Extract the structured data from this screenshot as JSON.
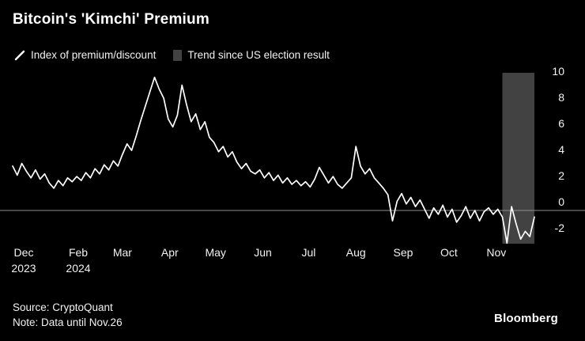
{
  "header": {
    "title": "Bitcoin's 'Kimchi' Premium"
  },
  "legend": [
    {
      "label": "Index of premium/discount",
      "marker": "white-line"
    },
    {
      "label": "Trend since US election result",
      "marker": "gray-box"
    }
  ],
  "footer": {
    "source": "Source: CryptoQuant",
    "note": "Note: Data until Nov.26",
    "brand": "Bloomberg"
  },
  "colors": {
    "background": "#000000",
    "line": "#ffffff",
    "band": "#424242",
    "axis": "#8f8f8f",
    "text": "#f2f2f2"
  },
  "chart_data": {
    "type": "line",
    "title": "Bitcoin's 'Kimchi' Premium",
    "ylabel": "",
    "xlabel": "",
    "y_ticks": [
      10,
      8,
      6,
      4,
      2,
      0,
      -2
    ],
    "ylim": [
      -2.8,
      10.8
    ],
    "x_domain_days": 342,
    "x_ticks": [
      {
        "label": "Dec",
        "year": "2023",
        "day": 6
      },
      {
        "label": "Feb",
        "year": "2024",
        "day": 43
      },
      {
        "label": "Mar",
        "day": 72
      },
      {
        "label": "Apr",
        "day": 103
      },
      {
        "label": "May",
        "day": 133
      },
      {
        "label": "Jun",
        "day": 164
      },
      {
        "label": "Jul",
        "day": 194
      },
      {
        "label": "Aug",
        "day": 225
      },
      {
        "label": "Sep",
        "day": 256
      },
      {
        "label": "Oct",
        "day": 286
      },
      {
        "label": "Nov",
        "day": 317
      }
    ],
    "zero_line": 0,
    "legend_position": "top",
    "grid": false,
    "highlight_band": {
      "name": "Trend since US election result",
      "start_day": 321,
      "end_day": 342
    },
    "series": [
      {
        "name": "Index of premium/discount",
        "points": [
          [
            0,
            3.4
          ],
          [
            3,
            2.7
          ],
          [
            6,
            3.6
          ],
          [
            9,
            3.0
          ],
          [
            12,
            2.5
          ],
          [
            15,
            3.1
          ],
          [
            18,
            2.4
          ],
          [
            21,
            2.8
          ],
          [
            24,
            2.1
          ],
          [
            27,
            1.7
          ],
          [
            30,
            2.3
          ],
          [
            33,
            1.9
          ],
          [
            36,
            2.5
          ],
          [
            39,
            2.2
          ],
          [
            42,
            2.6
          ],
          [
            45,
            2.3
          ],
          [
            48,
            2.9
          ],
          [
            51,
            2.5
          ],
          [
            54,
            3.2
          ],
          [
            57,
            2.8
          ],
          [
            60,
            3.5
          ],
          [
            63,
            3.1
          ],
          [
            66,
            3.8
          ],
          [
            69,
            3.4
          ],
          [
            72,
            4.3
          ],
          [
            75,
            5.1
          ],
          [
            78,
            4.6
          ],
          [
            81,
            5.7
          ],
          [
            84,
            6.9
          ],
          [
            87,
            8.0
          ],
          [
            90,
            9.1
          ],
          [
            93,
            10.2
          ],
          [
            96,
            9.3
          ],
          [
            99,
            8.6
          ],
          [
            102,
            7.0
          ],
          [
            105,
            6.4
          ],
          [
            108,
            7.3
          ],
          [
            111,
            9.6
          ],
          [
            114,
            8.1
          ],
          [
            117,
            6.8
          ],
          [
            120,
            7.4
          ],
          [
            123,
            6.2
          ],
          [
            126,
            6.8
          ],
          [
            129,
            5.6
          ],
          [
            132,
            5.2
          ],
          [
            135,
            4.5
          ],
          [
            138,
            4.9
          ],
          [
            141,
            4.1
          ],
          [
            144,
            4.5
          ],
          [
            147,
            3.7
          ],
          [
            150,
            3.2
          ],
          [
            153,
            3.6
          ],
          [
            156,
            3.0
          ],
          [
            159,
            2.8
          ],
          [
            162,
            3.1
          ],
          [
            165,
            2.5
          ],
          [
            168,
            2.9
          ],
          [
            171,
            2.3
          ],
          [
            174,
            2.7
          ],
          [
            177,
            2.1
          ],
          [
            180,
            2.5
          ],
          [
            183,
            2.0
          ],
          [
            186,
            2.3
          ],
          [
            189,
            1.9
          ],
          [
            192,
            2.2
          ],
          [
            195,
            1.8
          ],
          [
            198,
            2.4
          ],
          [
            201,
            3.3
          ],
          [
            204,
            2.7
          ],
          [
            207,
            2.1
          ],
          [
            210,
            2.6
          ],
          [
            213,
            2.0
          ],
          [
            216,
            1.7
          ],
          [
            219,
            2.1
          ],
          [
            222,
            2.5
          ],
          [
            225,
            4.9
          ],
          [
            228,
            3.4
          ],
          [
            231,
            2.8
          ],
          [
            234,
            3.2
          ],
          [
            237,
            2.5
          ],
          [
            240,
            2.1
          ],
          [
            243,
            1.7
          ],
          [
            246,
            1.2
          ],
          [
            249,
            -0.8
          ],
          [
            252,
            0.7
          ],
          [
            255,
            1.3
          ],
          [
            258,
            0.5
          ],
          [
            261,
            1.0
          ],
          [
            264,
            0.3
          ],
          [
            267,
            0.8
          ],
          [
            270,
            0.1
          ],
          [
            273,
            -0.6
          ],
          [
            276,
            0.2
          ],
          [
            279,
            -0.3
          ],
          [
            282,
            0.4
          ],
          [
            285,
            -0.5
          ],
          [
            288,
            0.1
          ],
          [
            291,
            -0.9
          ],
          [
            294,
            -0.4
          ],
          [
            297,
            0.3
          ],
          [
            300,
            -0.6
          ],
          [
            303,
            0.0
          ],
          [
            306,
            -0.8
          ],
          [
            309,
            -0.1
          ],
          [
            312,
            0.2
          ],
          [
            315,
            -0.3
          ],
          [
            318,
            0.1
          ],
          [
            321,
            -0.5
          ],
          [
            324,
            -2.5
          ],
          [
            327,
            0.3
          ],
          [
            330,
            -1.0
          ],
          [
            333,
            -2.2
          ],
          [
            336,
            -1.6
          ],
          [
            339,
            -2.0
          ],
          [
            342,
            -0.5
          ]
        ]
      }
    ]
  }
}
